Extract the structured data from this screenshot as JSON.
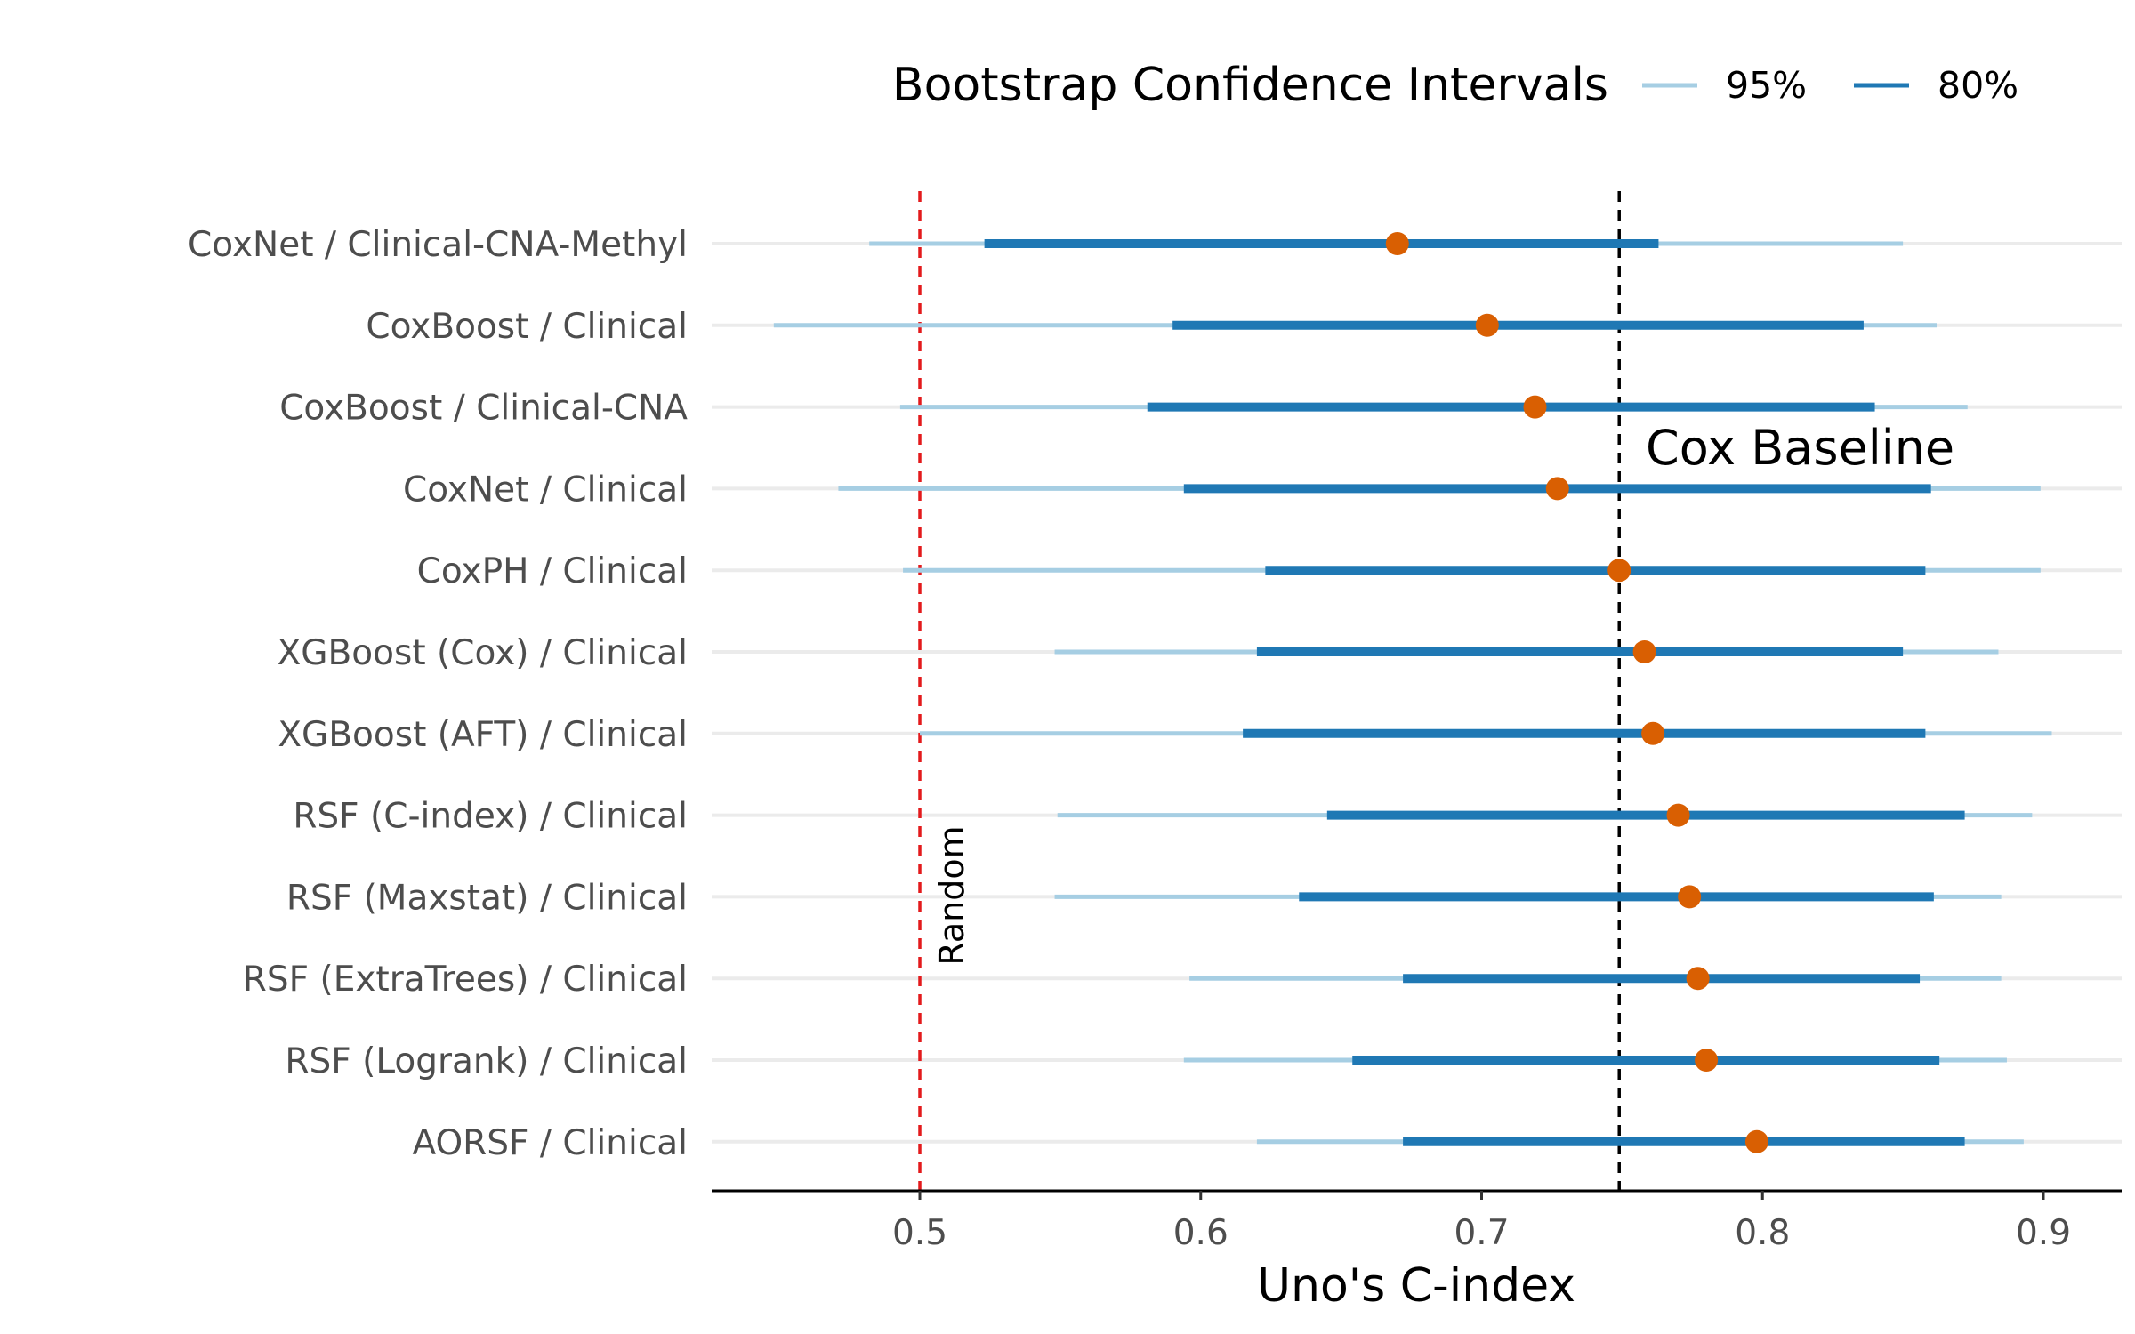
{
  "chart_data": {
    "type": "forest",
    "xlabel": "Uno's C-index",
    "xlim": [
      0.425,
      0.925
    ],
    "xticks": [
      0.5,
      0.6,
      0.7,
      0.8,
      0.9
    ],
    "xtick_labels": [
      "0.5",
      "0.6",
      "0.7",
      "0.8",
      "0.9"
    ],
    "grid": "horizontal lines at each category",
    "legend": {
      "title": "Bootstrap Confidence Intervals",
      "position": "top",
      "entries": [
        {
          "label": "95%",
          "color": "#a6cee3"
        },
        {
          "label": "80%",
          "color": "#1f78b4"
        }
      ]
    },
    "reference_lines": [
      {
        "x": 0.5,
        "label": "Random",
        "color": "#e31a1c",
        "style": "dashed"
      },
      {
        "x": 0.749,
        "label": "Cox Baseline",
        "color": "#000000",
        "style": "dashed"
      }
    ],
    "point_color": "#d95f02",
    "rows": [
      {
        "label": "CoxNet / Clinical-CNA-Methyl",
        "estimate": 0.67,
        "ci95": [
          0.482,
          0.85
        ],
        "ci80": [
          0.523,
          0.763
        ]
      },
      {
        "label": "CoxBoost / Clinical",
        "estimate": 0.702,
        "ci95": [
          0.448,
          0.862
        ],
        "ci80": [
          0.59,
          0.836
        ]
      },
      {
        "label": "CoxBoost / Clinical-CNA",
        "estimate": 0.719,
        "ci95": [
          0.493,
          0.873
        ],
        "ci80": [
          0.581,
          0.84
        ]
      },
      {
        "label": "CoxNet / Clinical",
        "estimate": 0.727,
        "ci95": [
          0.471,
          0.899
        ],
        "ci80": [
          0.594,
          0.86
        ]
      },
      {
        "label": "CoxPH / Clinical",
        "estimate": 0.749,
        "ci95": [
          0.494,
          0.899
        ],
        "ci80": [
          0.623,
          0.858
        ]
      },
      {
        "label": "XGBoost (Cox) / Clinical",
        "estimate": 0.758,
        "ci95": [
          0.548,
          0.884
        ],
        "ci80": [
          0.62,
          0.85
        ]
      },
      {
        "label": "XGBoost (AFT) / Clinical",
        "estimate": 0.761,
        "ci95": [
          0.5,
          0.903
        ],
        "ci80": [
          0.615,
          0.858
        ]
      },
      {
        "label": "RSF (C-index) / Clinical",
        "estimate": 0.77,
        "ci95": [
          0.549,
          0.896
        ],
        "ci80": [
          0.645,
          0.872
        ]
      },
      {
        "label": "RSF (Maxstat) / Clinical",
        "estimate": 0.774,
        "ci95": [
          0.548,
          0.885
        ],
        "ci80": [
          0.635,
          0.861
        ]
      },
      {
        "label": "RSF (ExtraTrees) / Clinical",
        "estimate": 0.777,
        "ci95": [
          0.596,
          0.885
        ],
        "ci80": [
          0.672,
          0.856
        ]
      },
      {
        "label": "RSF (Logrank) / Clinical",
        "estimate": 0.78,
        "ci95": [
          0.594,
          0.887
        ],
        "ci80": [
          0.654,
          0.863
        ]
      },
      {
        "label": "AORSF / Clinical",
        "estimate": 0.798,
        "ci95": [
          0.62,
          0.893
        ],
        "ci80": [
          0.672,
          0.872
        ]
      }
    ]
  }
}
